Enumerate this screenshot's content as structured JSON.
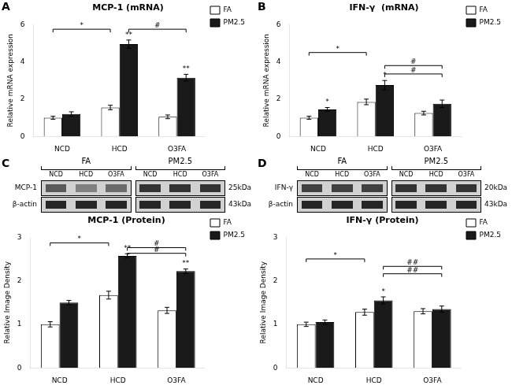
{
  "chart_data": [
    {
      "type": "bar",
      "panel": "A",
      "title": "MCP-1 (mRNA)",
      "y_label": "Relative mRNA expression",
      "categories": [
        "NCD",
        "HCD",
        "O3FA"
      ],
      "series": [
        {
          "name": "FA",
          "color": "white",
          "values": [
            1.0,
            1.55,
            1.05
          ],
          "errors": [
            0.08,
            0.12,
            0.1
          ]
        },
        {
          "name": "PM2.5",
          "color": "#1a1a1a",
          "values": [
            1.2,
            4.95,
            3.15
          ],
          "errors": [
            0.12,
            0.22,
            0.18
          ],
          "significance": [
            null,
            "**",
            "**"
          ]
        }
      ],
      "ylim": [
        0,
        6
      ],
      "yticks": [
        0,
        2,
        4,
        6
      ],
      "grid": false,
      "legend": "upper right",
      "brackets": [
        {
          "from": {
            "category": "NCD",
            "series": "FA"
          },
          "to": {
            "category": "HCD",
            "series": "FA"
          },
          "y": 5.75,
          "label": "*"
        },
        {
          "from": {
            "category": "HCD",
            "series": "PM2.5"
          },
          "to": {
            "category": "O3FA",
            "series": "PM2.5"
          },
          "y": 5.75,
          "label": "#"
        }
      ]
    },
    {
      "type": "bar",
      "panel": "B",
      "title": "IFN-γ  (mRNA)",
      "y_label": "Relative mRNA expression",
      "categories": [
        "NCD",
        "HCD",
        "O3FA"
      ],
      "series": [
        {
          "name": "FA",
          "color": "white",
          "values": [
            1.0,
            1.85,
            1.25
          ],
          "errors": [
            0.08,
            0.15,
            0.1
          ]
        },
        {
          "name": "PM2.5",
          "color": "#1a1a1a",
          "values": [
            1.45,
            2.75,
            1.75
          ],
          "errors": [
            0.1,
            0.25,
            0.2
          ],
          "significance": [
            "*",
            "*",
            null
          ]
        }
      ],
      "ylim": [
        0,
        6
      ],
      "yticks": [
        0,
        2,
        4,
        6
      ],
      "grid": false,
      "legend": "upper right",
      "brackets": [
        {
          "from": {
            "category": "NCD",
            "series": "FA"
          },
          "to": {
            "category": "HCD",
            "series": "FA"
          },
          "y": 4.5,
          "label": "*"
        },
        {
          "from": {
            "category": "HCD",
            "series": "PM2.5"
          },
          "to": {
            "category": "O3FA",
            "series": "PM2.5"
          },
          "y": 3.8,
          "label": "#"
        },
        {
          "from": {
            "category": "HCD",
            "series": "PM2.5"
          },
          "to": {
            "category": "O3FA",
            "series": "PM2.5"
          },
          "y": 3.35,
          "label": "#"
        }
      ]
    },
    {
      "type": "bar",
      "panel": "C",
      "title": "MCP-1 (Protein)",
      "y_label": "Relative Image Density",
      "categories": [
        "NCD",
        "HCD",
        "O3FA"
      ],
      "series": [
        {
          "name": "FA",
          "color": "white",
          "values": [
            1.0,
            1.67,
            1.32
          ],
          "errors": [
            0.06,
            0.09,
            0.07
          ]
        },
        {
          "name": "PM2.5",
          "color": "#1a1a1a",
          "values": [
            1.5,
            2.57,
            2.22
          ],
          "errors": [
            0.05,
            0.05,
            0.05
          ],
          "significance": [
            null,
            "**",
            "**"
          ]
        }
      ],
      "ylim": [
        0,
        3
      ],
      "yticks": [
        0,
        1,
        2,
        3
      ],
      "grid": false,
      "legend": "upper right",
      "brackets": [
        {
          "from": {
            "category": "NCD",
            "series": "FA"
          },
          "to": {
            "category": "HCD",
            "series": "FA"
          },
          "y": 2.87,
          "label": "*"
        },
        {
          "from": {
            "category": "HCD",
            "series": "PM2.5"
          },
          "to": {
            "category": "O3FA",
            "series": "PM2.5"
          },
          "y": 2.76,
          "label": "#"
        },
        {
          "from": {
            "category": "HCD",
            "series": "PM2.5"
          },
          "to": {
            "category": "O3FA",
            "series": "PM2.5"
          },
          "y": 2.63,
          "label": "#"
        }
      ],
      "blot": {
        "groups": [
          "FA",
          "PM2.5"
        ],
        "lanes": [
          "NCD",
          "HCD",
          "O3FA"
        ],
        "rows": [
          {
            "name": "MCP-1",
            "kda": "25kDa",
            "background": 0.82,
            "bands": {
              "FA": [
                0.35,
                0.5,
                0.42
              ],
              "PM2.5": [
                0.2,
                0.2,
                0.2
              ]
            }
          },
          {
            "name": "β-actin",
            "kda": "43kDa",
            "background": 0.82,
            "bands": {
              "FA": [
                0.15,
                0.15,
                0.15
              ],
              "PM2.5": [
                0.15,
                0.15,
                0.15
              ]
            }
          }
        ]
      }
    },
    {
      "type": "bar",
      "panel": "D",
      "title": "IFN-γ (Protein)",
      "y_label": "Relative Image Density",
      "categories": [
        "NCD",
        "HCD",
        "O3FA"
      ],
      "series": [
        {
          "name": "FA",
          "color": "white",
          "values": [
            1.0,
            1.28,
            1.3
          ],
          "errors": [
            0.05,
            0.07,
            0.06
          ]
        },
        {
          "name": "PM2.5",
          "color": "#1a1a1a",
          "values": [
            1.05,
            1.55,
            1.35
          ],
          "errors": [
            0.05,
            0.08,
            0.07
          ],
          "significance": [
            null,
            "*",
            null
          ]
        }
      ],
      "ylim": [
        0,
        3
      ],
      "yticks": [
        0,
        1,
        2,
        3
      ],
      "grid": false,
      "legend": "upper right",
      "brackets": [
        {
          "from": {
            "category": "NCD",
            "series": "FA"
          },
          "to": {
            "category": "HCD",
            "series": "FA"
          },
          "y": 2.5,
          "label": "*"
        },
        {
          "from": {
            "category": "HCD",
            "series": "PM2.5"
          },
          "to": {
            "category": "O3FA",
            "series": "PM2.5"
          },
          "y": 2.33,
          "label": "##"
        },
        {
          "from": {
            "category": "HCD",
            "series": "PM2.5"
          },
          "to": {
            "category": "O3FA",
            "series": "PM2.5"
          },
          "y": 2.16,
          "label": "##"
        }
      ],
      "blot": {
        "groups": [
          "FA",
          "PM2.5"
        ],
        "lanes": [
          "NCD",
          "HCD",
          "O3FA"
        ],
        "rows": [
          {
            "name": "IFN-γ",
            "kda": "20kDa",
            "background": 0.82,
            "bands": {
              "FA": [
                0.25,
                0.25,
                0.25
              ],
              "PM2.5": [
                0.2,
                0.2,
                0.2
              ]
            }
          },
          {
            "name": "β-actin",
            "kda": "43kDa",
            "background": 0.82,
            "bands": {
              "FA": [
                0.15,
                0.15,
                0.15
              ],
              "PM2.5": [
                0.15,
                0.15,
                0.15
              ]
            }
          }
        ]
      }
    }
  ]
}
